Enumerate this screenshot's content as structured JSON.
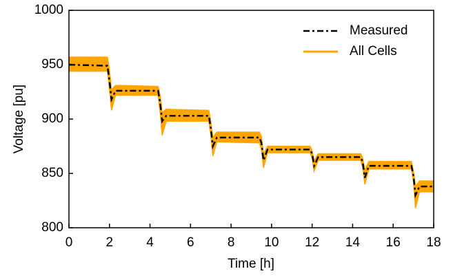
{
  "chart_data": {
    "type": "line",
    "xlabel": "Time [h]",
    "ylabel": "Voltage [pu]",
    "x": [
      0,
      1.9,
      2.0,
      2.1,
      2.3,
      4.4,
      4.5,
      4.6,
      4.8,
      6.9,
      7.0,
      7.1,
      7.3,
      9.4,
      9.5,
      9.6,
      9.8,
      11.9,
      12.0,
      12.1,
      12.3,
      14.4,
      14.5,
      14.6,
      14.8,
      16.9,
      17.0,
      17.1,
      17.3,
      18
    ],
    "series": [
      {
        "name": "Measured",
        "color": "#000000",
        "style": "dashdot",
        "values": [
          950,
          949,
          935,
          918,
          926,
          926,
          915,
          898,
          903,
          903,
          892,
          875,
          883,
          883,
          878,
          862,
          872,
          872,
          868,
          857,
          865,
          865,
          860,
          846,
          857,
          857,
          848,
          830,
          838,
          838
        ]
      },
      {
        "name": "All Cells",
        "color": "#FFA500",
        "style": "band",
        "upper": [
          957,
          957,
          945,
          927,
          931,
          930,
          922,
          906,
          909,
          908,
          898,
          883,
          888,
          888,
          884,
          868,
          875,
          875,
          871,
          862,
          868,
          868,
          864,
          853,
          861,
          861,
          852,
          838,
          843,
          843
        ],
        "lower": [
          944,
          944,
          927,
          908,
          922,
          922,
          906,
          885,
          898,
          898,
          885,
          866,
          879,
          878,
          872,
          855,
          869,
          869,
          864,
          852,
          862,
          862,
          855,
          840,
          854,
          854,
          843,
          818,
          833,
          833
        ]
      }
    ],
    "xlim": [
      0,
      18
    ],
    "xticks": [
      0,
      2,
      4,
      6,
      8,
      10,
      12,
      14,
      16,
      18
    ],
    "ylim": [
      800,
      1000
    ],
    "yticks": [
      800,
      850,
      900,
      950,
      1000
    ],
    "grid": false,
    "legend": "upper right"
  }
}
